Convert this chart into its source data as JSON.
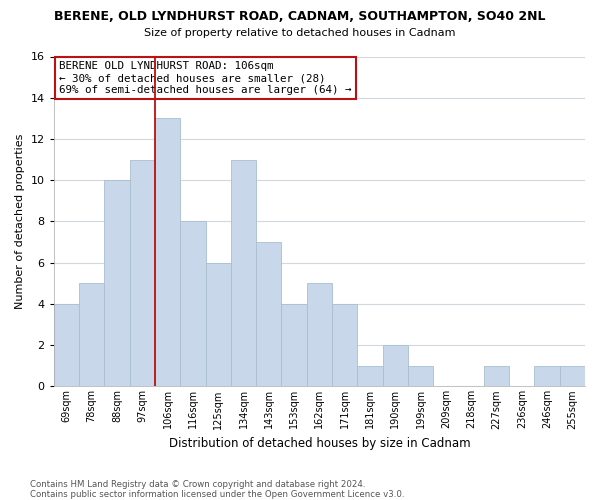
{
  "title1": "BERENE, OLD LYNDHURST ROAD, CADNAM, SOUTHAMPTON, SO40 2NL",
  "title2": "Size of property relative to detached houses in Cadnam",
  "xlabel": "Distribution of detached houses by size in Cadnam",
  "ylabel": "Number of detached properties",
  "categories": [
    "69sqm",
    "78sqm",
    "88sqm",
    "97sqm",
    "106sqm",
    "116sqm",
    "125sqm",
    "134sqm",
    "143sqm",
    "153sqm",
    "162sqm",
    "171sqm",
    "181sqm",
    "190sqm",
    "199sqm",
    "209sqm",
    "218sqm",
    "227sqm",
    "236sqm",
    "246sqm",
    "255sqm"
  ],
  "values": [
    4,
    5,
    10,
    11,
    13,
    8,
    6,
    11,
    7,
    4,
    5,
    4,
    1,
    2,
    1,
    0,
    0,
    1,
    0,
    1,
    1
  ],
  "bar_color": "#c8d8ea",
  "bar_edge_color": "#a8bfcf",
  "highlight_index": 4,
  "vline_color": "#bb1111",
  "ylim": [
    0,
    16
  ],
  "yticks": [
    0,
    2,
    4,
    6,
    8,
    10,
    12,
    14,
    16
  ],
  "annotation_line1": "BERENE OLD LYNDHURST ROAD: 106sqm",
  "annotation_line2": "← 30% of detached houses are smaller (28)",
  "annotation_line3": "69% of semi-detached houses are larger (64) →",
  "footer1": "Contains HM Land Registry data © Crown copyright and database right 2024.",
  "footer2": "Contains public sector information licensed under the Open Government Licence v3.0.",
  "bg_color": "#ffffff",
  "grid_color": "#d0d8e0"
}
